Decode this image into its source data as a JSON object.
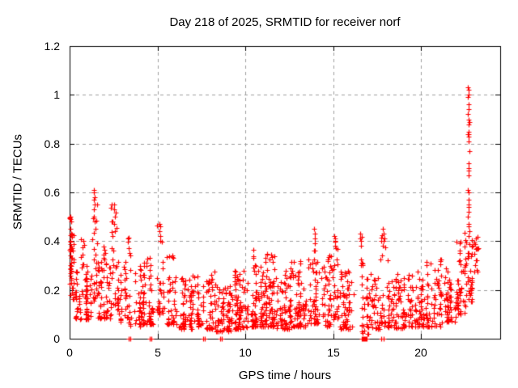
{
  "chart_data": {
    "type": "scatter",
    "title": "Day 218 of 2025, SRMTID for receiver norf",
    "xlabel": "GPS time / hours",
    "ylabel": "SRMTID / TECUs",
    "xlim": [
      0,
      24.5
    ],
    "ylim": [
      0,
      1.2
    ],
    "xticks": [
      0,
      5,
      10,
      15,
      20
    ],
    "xtick_labels": [
      "0",
      "5",
      "10",
      "15",
      "20"
    ],
    "yticks": [
      0,
      0.2,
      0.4,
      0.6,
      0.8,
      1,
      1.2
    ],
    "ytick_labels": [
      "0",
      "0.2",
      "0.4",
      "0.6",
      "0.8",
      "1",
      "1.2"
    ],
    "grid": true,
    "legend": "none",
    "marker": "plus",
    "marker_size_px": 7,
    "colors": {
      "marker": "#ff0000",
      "grid": "#a0a0a0",
      "axis": "#000000",
      "background": "#ffffff",
      "text": "#000000"
    },
    "series_name": "SRMTID",
    "seed": 218,
    "bands_key": [
      "x_start_hours",
      "x_end_hours",
      "count",
      "y_min_tecus",
      "y_max_tecus",
      "bottom_bias"
    ],
    "bands": [
      [
        0.0,
        0.15,
        14,
        0.22,
        0.5,
        1.0
      ],
      [
        0.05,
        0.5,
        30,
        0.15,
        0.45,
        1.6
      ],
      [
        0.3,
        1.25,
        70,
        0.08,
        0.3,
        1.5
      ],
      [
        0.6,
        1.0,
        8,
        0.3,
        0.45,
        1.2
      ],
      [
        1.25,
        1.55,
        22,
        0.15,
        0.61,
        1.4
      ],
      [
        1.5,
        2.35,
        55,
        0.08,
        0.32,
        1.6
      ],
      [
        1.9,
        2.1,
        6,
        0.3,
        0.38,
        1.0
      ],
      [
        2.35,
        2.75,
        20,
        0.12,
        0.55,
        1.4
      ],
      [
        2.7,
        3.3,
        45,
        0.07,
        0.33,
        1.6
      ],
      [
        3.3,
        4.2,
        55,
        0.05,
        0.3,
        1.7
      ],
      [
        3.35,
        3.5,
        6,
        0.25,
        0.42,
        1.0
      ],
      [
        4.2,
        4.9,
        45,
        0.06,
        0.35,
        1.6
      ],
      [
        4.9,
        5.4,
        28,
        0.1,
        0.47,
        1.4
      ],
      [
        5.4,
        6.1,
        40,
        0.06,
        0.35,
        1.7
      ],
      [
        6.1,
        7.0,
        60,
        0.04,
        0.25,
        1.6
      ],
      [
        7.0,
        7.6,
        40,
        0.05,
        0.35,
        1.7
      ],
      [
        7.6,
        8.3,
        45,
        0.04,
        0.28,
        1.7
      ],
      [
        8.3,
        9.3,
        75,
        0.03,
        0.22,
        1.6
      ],
      [
        9.3,
        10.2,
        80,
        0.04,
        0.28,
        1.7
      ],
      [
        10.2,
        11.0,
        75,
        0.05,
        0.3,
        1.7
      ],
      [
        10.4,
        10.5,
        5,
        0.28,
        0.37,
        1.0
      ],
      [
        11.0,
        11.8,
        70,
        0.05,
        0.35,
        1.8
      ],
      [
        11.8,
        12.6,
        70,
        0.04,
        0.28,
        1.6
      ],
      [
        12.6,
        13.5,
        75,
        0.05,
        0.32,
        1.7
      ],
      [
        13.5,
        14.2,
        50,
        0.06,
        0.42,
        1.8
      ],
      [
        14.2,
        15.0,
        55,
        0.05,
        0.35,
        1.7
      ],
      [
        15.0,
        15.4,
        25,
        0.08,
        0.42,
        1.5
      ],
      [
        15.4,
        16.4,
        60,
        0.04,
        0.28,
        1.6
      ],
      [
        16.4,
        17.0,
        30,
        0.02,
        0.33,
        1.7
      ],
      [
        16.5,
        16.62,
        5,
        0.28,
        0.43,
        1.0
      ],
      [
        17.0,
        17.7,
        40,
        0.04,
        0.3,
        1.7
      ],
      [
        17.7,
        18.1,
        25,
        0.05,
        0.45,
        1.7
      ],
      [
        18.1,
        19.2,
        75,
        0.04,
        0.28,
        1.6
      ],
      [
        19.2,
        20.2,
        70,
        0.05,
        0.3,
        1.7
      ],
      [
        20.2,
        21.2,
        70,
        0.05,
        0.33,
        1.7
      ],
      [
        21.2,
        22.0,
        55,
        0.07,
        0.3,
        1.5
      ],
      [
        22.0,
        22.5,
        45,
        0.1,
        0.4,
        1.5
      ],
      [
        22.5,
        23.0,
        40,
        0.15,
        0.45,
        1.4
      ],
      [
        23.0,
        23.3,
        15,
        0.25,
        0.45,
        1.2
      ]
    ],
    "explicit_points_key": [
      "x_hours",
      "y_tecus"
    ],
    "explicit_points": [
      [
        0.05,
        0.5
      ],
      [
        0.07,
        0.48
      ],
      [
        0.06,
        0.45
      ],
      [
        0.08,
        0.43
      ],
      [
        0.05,
        0.4
      ],
      [
        0.07,
        0.37
      ],
      [
        0.06,
        0.34
      ],
      [
        0.08,
        0.3
      ],
      [
        0.05,
        0.26
      ],
      [
        0.07,
        0.23
      ],
      [
        1.38,
        0.61
      ],
      [
        1.4,
        0.6
      ],
      [
        1.42,
        0.58
      ],
      [
        1.39,
        0.57
      ],
      [
        1.41,
        0.55
      ],
      [
        1.4,
        0.53
      ],
      [
        1.38,
        0.5
      ],
      [
        1.42,
        0.48
      ],
      [
        2.52,
        0.55
      ],
      [
        2.55,
        0.53
      ],
      [
        2.57,
        0.5
      ],
      [
        2.54,
        0.47
      ],
      [
        2.56,
        0.44
      ],
      [
        5.1,
        0.47
      ],
      [
        5.15,
        0.46
      ],
      [
        5.12,
        0.44
      ],
      [
        5.18,
        0.42
      ],
      [
        5.14,
        0.4
      ],
      [
        13.92,
        0.45
      ],
      [
        13.95,
        0.43
      ],
      [
        13.97,
        0.41
      ],
      [
        13.94,
        0.39
      ],
      [
        13.96,
        0.36
      ],
      [
        15.08,
        0.42
      ],
      [
        15.12,
        0.4
      ],
      [
        15.1,
        0.38
      ],
      [
        16.52,
        0.43
      ],
      [
        16.55,
        0.41
      ],
      [
        16.57,
        0.38
      ],
      [
        17.82,
        0.45
      ],
      [
        17.85,
        0.43
      ],
      [
        17.87,
        0.4
      ],
      [
        17.84,
        0.38
      ],
      [
        22.68,
        1.03
      ],
      [
        22.7,
        1.02
      ],
      [
        22.72,
        1.0
      ],
      [
        22.66,
        0.99
      ],
      [
        22.7,
        0.96
      ],
      [
        22.72,
        0.94
      ],
      [
        22.68,
        0.92
      ],
      [
        22.7,
        0.9
      ],
      [
        22.74,
        0.89
      ],
      [
        22.69,
        0.88
      ],
      [
        22.71,
        0.85
      ],
      [
        22.7,
        0.84
      ],
      [
        22.68,
        0.84
      ],
      [
        22.72,
        0.83
      ],
      [
        22.7,
        0.81
      ],
      [
        22.73,
        0.77
      ],
      [
        22.69,
        0.72
      ],
      [
        22.71,
        0.7
      ],
      [
        22.7,
        0.69
      ],
      [
        22.72,
        0.67
      ],
      [
        22.68,
        0.61
      ],
      [
        22.7,
        0.6
      ],
      [
        22.71,
        0.57
      ],
      [
        22.69,
        0.55
      ],
      [
        22.72,
        0.54
      ],
      [
        22.7,
        0.52
      ],
      [
        22.68,
        0.5
      ],
      [
        22.71,
        0.47
      ],
      [
        22.7,
        0.46
      ],
      [
        22.73,
        0.44
      ],
      [
        22.69,
        0.42
      ]
    ],
    "zero_value_points_x_hours": [
      3.35,
      3.45,
      4.55,
      4.65,
      7.6,
      7.7,
      8.55,
      8.65,
      16.62,
      16.66,
      16.7,
      16.74,
      16.78,
      16.82,
      16.86,
      16.9,
      17.75,
      17.85
    ]
  }
}
